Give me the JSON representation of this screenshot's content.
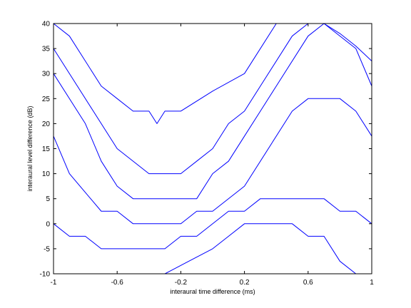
{
  "chart_data": {
    "type": "line",
    "xlabel": "interaural time difference (ms)",
    "ylabel": "interaural level difference (dB)",
    "xlim": [
      -1,
      1
    ],
    "ylim": [
      -10,
      40
    ],
    "grid": false,
    "x_ticks": [
      {
        "value": -1,
        "label": "-1"
      },
      {
        "value": -0.6,
        "label": "-0.6"
      },
      {
        "value": -0.2,
        "label": "-0.2"
      },
      {
        "value": 0.2,
        "label": "0.2"
      },
      {
        "value": 0.6,
        "label": "0.6"
      },
      {
        "value": 1,
        "label": "1"
      }
    ],
    "y_ticks": [
      {
        "value": -10,
        "label": "-10"
      },
      {
        "value": -5,
        "label": "-5"
      },
      {
        "value": 0,
        "label": "0"
      },
      {
        "value": 5,
        "label": "5"
      },
      {
        "value": 10,
        "label": "10"
      },
      {
        "value": 15,
        "label": "15"
      },
      {
        "value": 20,
        "label": "20"
      },
      {
        "value": 25,
        "label": "25"
      },
      {
        "value": 30,
        "label": "30"
      },
      {
        "value": 35,
        "label": "35"
      },
      {
        "value": 40,
        "label": "40"
      }
    ],
    "line_color": "#0000ff",
    "series": [
      {
        "points": [
          [
            -1,
            40
          ],
          [
            -0.9,
            37.5
          ],
          [
            -0.7,
            27.5
          ],
          [
            -0.6,
            25
          ],
          [
            -0.5,
            22.5
          ],
          [
            -0.4,
            22.5
          ],
          [
            -0.35,
            20
          ],
          [
            -0.3,
            22.5
          ],
          [
            -0.2,
            22.5
          ],
          [
            0,
            26.5
          ],
          [
            0.2,
            30
          ],
          [
            0.4,
            40
          ],
          [
            1,
            40
          ]
        ]
      },
      {
        "points": [
          [
            -1,
            35
          ],
          [
            -0.85,
            27.5
          ],
          [
            -0.6,
            15
          ],
          [
            -0.4,
            10
          ],
          [
            -0.2,
            10
          ],
          [
            -0.1,
            12.5
          ],
          [
            0,
            15
          ],
          [
            0.1,
            20
          ],
          [
            0.2,
            22.5
          ],
          [
            0.3,
            27.5
          ],
          [
            0.5,
            37.5
          ],
          [
            0.6,
            40
          ],
          [
            0.7,
            40
          ],
          [
            0.9,
            35
          ],
          [
            1,
            27.5
          ]
        ]
      },
      {
        "points": [
          [
            -1,
            30
          ],
          [
            -0.8,
            20
          ],
          [
            -0.7,
            12.5
          ],
          [
            -0.6,
            7.5
          ],
          [
            -0.5,
            5
          ],
          [
            -0.1,
            5
          ],
          [
            0,
            10
          ],
          [
            0.1,
            12.5
          ],
          [
            0.2,
            17.5
          ],
          [
            0.3,
            22.5
          ],
          [
            0.4,
            27.5
          ],
          [
            0.6,
            37.5
          ],
          [
            0.7,
            40
          ],
          [
            0.8,
            38
          ],
          [
            0.9,
            35.5
          ],
          [
            1,
            32.5
          ]
        ]
      },
      {
        "points": [
          [
            -1,
            17.5
          ],
          [
            -0.9,
            10
          ],
          [
            -0.7,
            2.5
          ],
          [
            -0.6,
            2.5
          ],
          [
            -0.5,
            0
          ],
          [
            -0.2,
            0
          ],
          [
            -0.1,
            2.5
          ],
          [
            0,
            2.5
          ],
          [
            0.2,
            7.5
          ],
          [
            0.5,
            22.5
          ],
          [
            0.6,
            25
          ],
          [
            0.8,
            25
          ],
          [
            0.9,
            22.5
          ],
          [
            1,
            17.5
          ]
        ]
      },
      {
        "points": [
          [
            -1,
            0
          ],
          [
            -0.9,
            -2.5
          ],
          [
            -0.8,
            -2.5
          ],
          [
            -0.7,
            -5
          ],
          [
            -0.3,
            -5
          ],
          [
            -0.2,
            -2.5
          ],
          [
            -0.1,
            -2.5
          ],
          [
            0.1,
            2.5
          ],
          [
            0.2,
            2.5
          ],
          [
            0.3,
            5
          ],
          [
            0.7,
            5
          ],
          [
            0.8,
            2.5
          ],
          [
            0.9,
            2.5
          ],
          [
            1,
            0
          ]
        ]
      },
      {
        "points": [
          [
            -0.3,
            -10
          ],
          [
            0,
            -5
          ],
          [
            0.1,
            -2.5
          ],
          [
            0.2,
            0
          ],
          [
            0.5,
            0
          ],
          [
            0.6,
            -2.5
          ],
          [
            0.7,
            -2.5
          ],
          [
            0.8,
            -7.5
          ],
          [
            0.9,
            -10
          ]
        ]
      },
      {
        "points": [
          [
            -1,
            -10
          ],
          [
            1,
            -10
          ]
        ]
      }
    ]
  }
}
